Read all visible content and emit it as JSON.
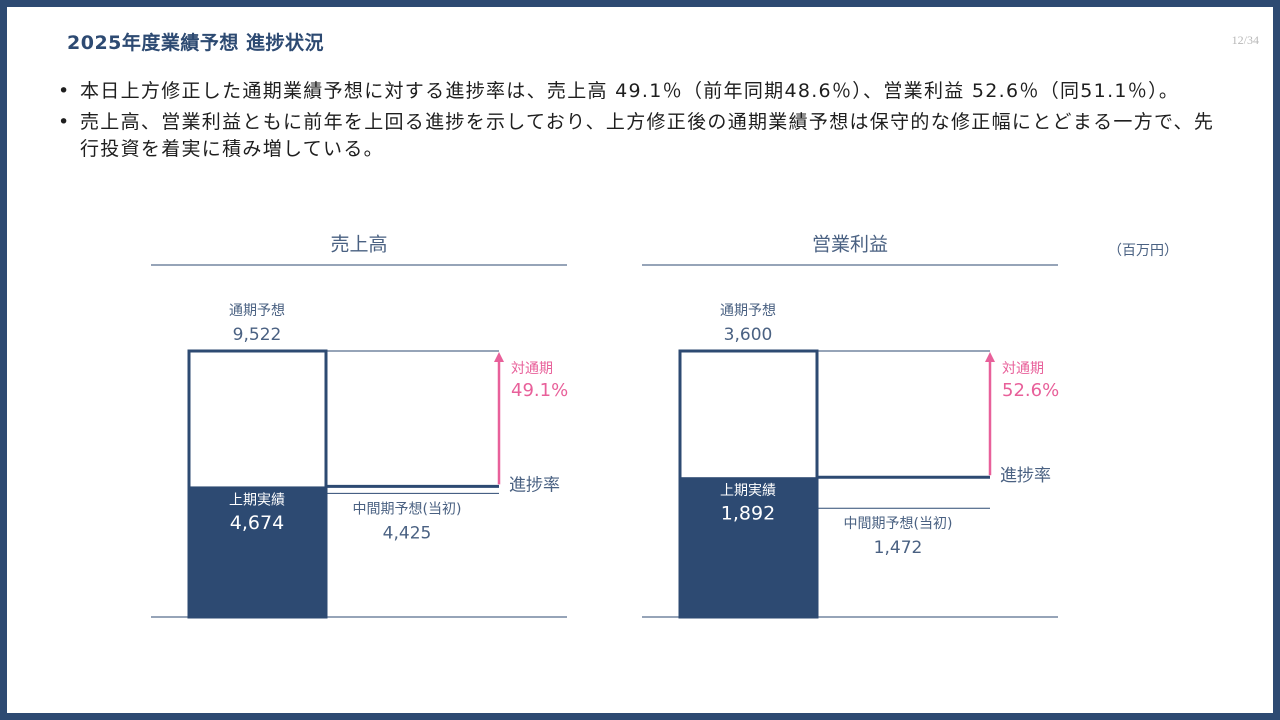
{
  "page": {
    "title": "2025年度業績予想 進捗状況",
    "page_number": "12/34",
    "bullets": [
      "本日上方修正した通期業績予想に対する進捗率は、売上高 49.1％（前年同期48.6％）、営業利益 52.6％（同51.1％）。",
      "売上高、営業利益ともに前年を上回る進捗を示しており、上方修正後の通期業績予想は保守的な修正幅にとどまる一方で、先行投資を着実に積み増している。"
    ],
    "bullet_mark": "•",
    "unit": "（百万円）"
  },
  "colors": {
    "navy": "#2d4a72",
    "accent_pink": "#e8609a",
    "label_blue": "#4a6182"
  },
  "chart_data": [
    {
      "type": "bar",
      "title": "売上高",
      "unit": "百万円",
      "full_year_label": "通期予想",
      "full_year_value": 9522,
      "full_year_text": "9,522",
      "actual_label": "上期実績",
      "actual_value": 4674,
      "actual_text": "4,674",
      "plan_label": "中間期予想(当初)",
      "plan_value": 4425,
      "plan_text": "4,425",
      "progress_label": "進捗率",
      "ratio_label": "対通期",
      "ratio_text": "49.1%"
    },
    {
      "type": "bar",
      "title": "営業利益",
      "unit": "百万円",
      "full_year_label": "通期予想",
      "full_year_value": 3600,
      "full_year_text": "3,600",
      "actual_label": "上期実績",
      "actual_value": 1892,
      "actual_text": "1,892",
      "plan_label": "中間期予想(当初)",
      "plan_value": 1472,
      "plan_text": "1,472",
      "progress_label": "進捗率",
      "ratio_label": "対通期",
      "ratio_text": "52.6%"
    }
  ]
}
